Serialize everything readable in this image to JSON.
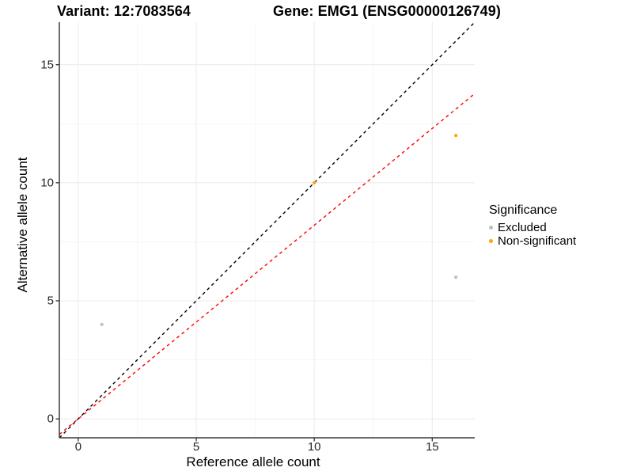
{
  "chart_data": {
    "type": "scatter",
    "title_left": "Variant: 12:7083564",
    "title_right": "Gene: EMG1 (ENSG00000126749)",
    "xlabel": "Reference allele count",
    "ylabel": "Alternative allele count",
    "xlim": [
      -0.8,
      16.8
    ],
    "ylim": [
      -0.8,
      16.8
    ],
    "x_ticks": [
      0,
      5,
      10,
      15
    ],
    "y_ticks": [
      0,
      5,
      10,
      15
    ],
    "x_minor_ticks": [
      2.5,
      7.5,
      12.5
    ],
    "y_minor_ticks": [
      2.5,
      7.5,
      12.5
    ],
    "series": [
      {
        "name": "Excluded",
        "color": "#BEBEBE",
        "points": [
          [
            1,
            4
          ],
          [
            16,
            6
          ]
        ]
      },
      {
        "name": "Non-significant",
        "color": "#FFA500",
        "points": [
          [
            10,
            10
          ],
          [
            16,
            12
          ]
        ]
      }
    ],
    "lines": [
      {
        "name": "identity-line",
        "slope": 1,
        "intercept": 0,
        "color": "#000000",
        "dash": "4 4"
      },
      {
        "name": "fitted-ratio-line",
        "slope": 0.82,
        "intercept": 0,
        "color": "#FF0000",
        "dash": "4 4"
      }
    ],
    "legend": {
      "title": "Significance",
      "position": "right",
      "items": [
        {
          "label": "Excluded",
          "color": "#BEBEBE"
        },
        {
          "label": "Non-significant",
          "color": "#FFA500"
        }
      ]
    },
    "colors": {
      "background": "#FFFFFF",
      "grid_major": "#ECECEC",
      "grid_minor": "#F5F5F5",
      "axis_line": "#3C3C3C",
      "tick_mark": "#333333",
      "tick_label": "#262626"
    },
    "grid": "on"
  }
}
